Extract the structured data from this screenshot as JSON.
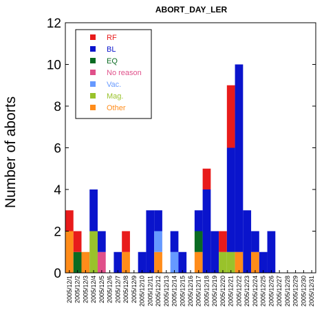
{
  "chart_data": {
    "type": "bar",
    "stacked": true,
    "title": "ABORT_DAY_LER",
    "xlabel": "",
    "ylabel": "Number of aborts",
    "ylim": [
      0,
      12
    ],
    "yticks": [
      0,
      2,
      4,
      6,
      8,
      10,
      12
    ],
    "grid": false,
    "legend_position": "top-left",
    "categories": [
      "2005/12/1",
      "2005/12/2",
      "2005/12/3",
      "2005/12/4",
      "2005/12/5",
      "2005/12/6",
      "2005/12/7",
      "2005/12/8",
      "2005/12/9",
      "2005/12/10",
      "2005/12/11",
      "2005/12/12",
      "2005/12/13",
      "2005/12/14",
      "2005/12/15",
      "2005/12/16",
      "2005/12/17",
      "2005/12/18",
      "2005/12/19",
      "2005/12/20",
      "2005/12/21",
      "2005/12/22",
      "2005/12/23",
      "2005/12/24",
      "2005/12/25",
      "2005/12/26",
      "2005/12/27",
      "2005/12/28",
      "2005/12/29",
      "2005/12/30",
      "2005/12/31"
    ],
    "series": [
      {
        "name": "Other",
        "color": "#ff8c1a",
        "values": [
          2,
          0,
          1,
          0,
          0,
          0,
          0,
          1,
          0,
          0,
          0,
          1,
          0,
          0,
          0,
          0,
          1,
          0,
          0,
          0,
          0,
          1,
          0,
          1,
          0,
          0,
          0,
          0,
          0,
          0,
          0
        ]
      },
      {
        "name": "Mag.",
        "color": "#99c22b",
        "values": [
          0,
          0,
          0,
          2,
          0,
          0,
          0,
          0,
          0,
          0,
          0,
          0,
          0,
          0,
          0,
          0,
          0,
          0,
          0,
          1,
          1,
          0,
          0,
          0,
          0,
          0,
          0,
          0,
          0,
          0,
          0
        ]
      },
      {
        "name": "Vac.",
        "color": "#6699ff",
        "values": [
          0,
          0,
          0,
          0,
          0,
          0,
          0,
          0,
          0,
          0,
          0,
          1,
          0,
          1,
          0,
          0,
          0,
          0,
          0,
          0,
          0,
          0,
          0,
          0,
          0,
          0,
          0,
          0,
          0,
          0,
          0
        ]
      },
      {
        "name": "No reason",
        "color": "#e0508a",
        "values": [
          0,
          0,
          0,
          0,
          1,
          0,
          0,
          0,
          0,
          0,
          0,
          0,
          0,
          0,
          0,
          0,
          0,
          0,
          0,
          0,
          0,
          0,
          0,
          0,
          0,
          0,
          0,
          0,
          0,
          0,
          0
        ]
      },
      {
        "name": "EQ",
        "color": "#0a6b22",
        "values": [
          0,
          1,
          0,
          0,
          0,
          0,
          0,
          0,
          0,
          0,
          0,
          0,
          0,
          0,
          0,
          0,
          1,
          0,
          0,
          0,
          0,
          0,
          0,
          0,
          0,
          0,
          0,
          0,
          0,
          0,
          0
        ]
      },
      {
        "name": "BL",
        "color": "#0a14cc",
        "values": [
          0,
          0,
          0,
          2,
          1,
          0,
          1,
          0,
          0,
          1,
          3,
          1,
          0,
          1,
          1,
          0,
          1,
          4,
          2,
          0,
          5,
          9,
          3,
          1,
          1,
          2,
          0,
          0,
          0,
          0,
          0
        ]
      },
      {
        "name": "RF",
        "color": "#e81b1b",
        "values": [
          1,
          1,
          0,
          0,
          0,
          0,
          0,
          1,
          0,
          0,
          0,
          0,
          0,
          0,
          0,
          0,
          0,
          1,
          0,
          1,
          3,
          0,
          0,
          0,
          0,
          0,
          0,
          0,
          0,
          0,
          0
        ]
      }
    ],
    "legend_order": [
      "RF",
      "BL",
      "EQ",
      "No reason",
      "Vac.",
      "Mag.",
      "Other"
    ]
  }
}
